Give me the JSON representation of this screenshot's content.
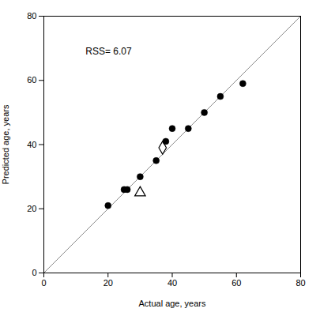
{
  "chart_data": {
    "type": "scatter",
    "xlabel": "Actual age, years",
    "ylabel": "Predicted age, years",
    "xlim": [
      0,
      80
    ],
    "ylim": [
      0,
      80
    ],
    "xticks": [
      0,
      20,
      40,
      60,
      80
    ],
    "yticks": [
      0,
      20,
      40,
      60,
      80
    ],
    "grid": false,
    "series": [
      {
        "type": "line",
        "color": "#888888",
        "x": [
          0,
          80
        ],
        "values": [
          0,
          80
        ]
      },
      {
        "type": "scatter",
        "marker": "circle",
        "color": "#000000",
        "x": [
          20,
          25,
          26,
          30,
          35,
          38,
          40,
          45,
          50,
          55,
          62
        ],
        "values": [
          21,
          26,
          26,
          30,
          35,
          41,
          45,
          45,
          50,
          55,
          59
        ]
      },
      {
        "type": "scatter",
        "marker": "open_triangle",
        "color": "#000000",
        "x": [
          30
        ],
        "values": [
          25
        ]
      },
      {
        "type": "scatter",
        "marker": "open_diamond",
        "color": "#000000",
        "x": [
          37
        ],
        "values": [
          39
        ]
      }
    ],
    "annotations": [
      {
        "text": "RSS= 6.07",
        "x": 13,
        "y": 69
      }
    ]
  }
}
